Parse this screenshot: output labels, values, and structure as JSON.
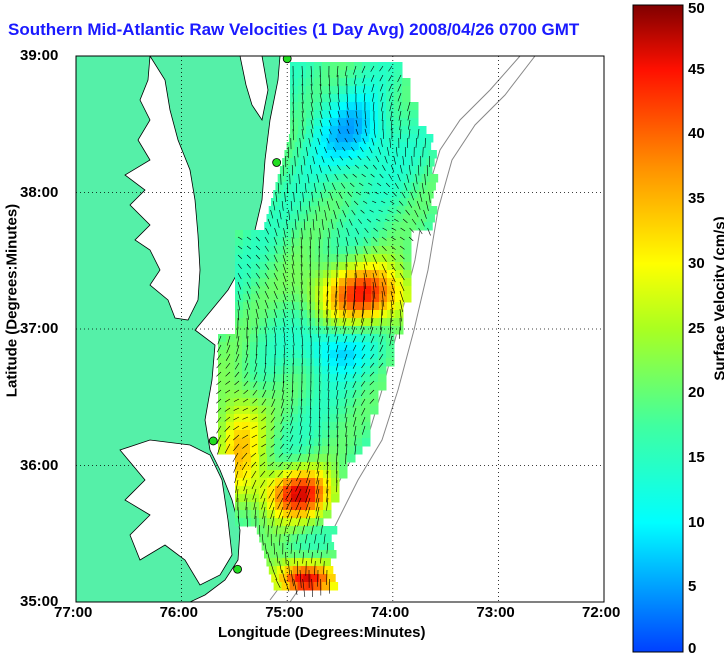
{
  "title": "Southern Mid-Atlantic Raw Velocities (1 Day Avg) 2008/04/26 0700 GMT",
  "xlabel": "Longitude (Degrees:Minutes)",
  "ylabel": "Latitude (Degrees:Minutes)",
  "x_ticks": [
    "77:00",
    "76:00",
    "75:00",
    "74:00",
    "73:00",
    "72:00"
  ],
  "y_ticks": [
    "39:00",
    "38:00",
    "37:00",
    "36:00",
    "35:00"
  ],
  "colorbar": {
    "label": "Surface Velocity (cm/s)",
    "ticks": [
      "0",
      "5",
      "10",
      "15",
      "20",
      "25",
      "30",
      "35",
      "40",
      "45",
      "50"
    ],
    "range": [
      0,
      50
    ],
    "units": "cm/s"
  },
  "colors": {
    "land": "#55f0a8",
    "coastline": "#000000",
    "grid": "#000000",
    "station": "#22dd22",
    "title": "#1a1aff"
  },
  "map": {
    "lon_range": [
      -77,
      -72
    ],
    "lat_range": [
      35,
      39
    ],
    "grid": "dotted",
    "stations": [
      {
        "lon": -75.0,
        "lat": 38.98
      },
      {
        "lon": -75.1,
        "lat": 38.22
      },
      {
        "lon": -75.7,
        "lat": 36.18
      },
      {
        "lon": -75.47,
        "lat": 35.24
      }
    ]
  }
}
